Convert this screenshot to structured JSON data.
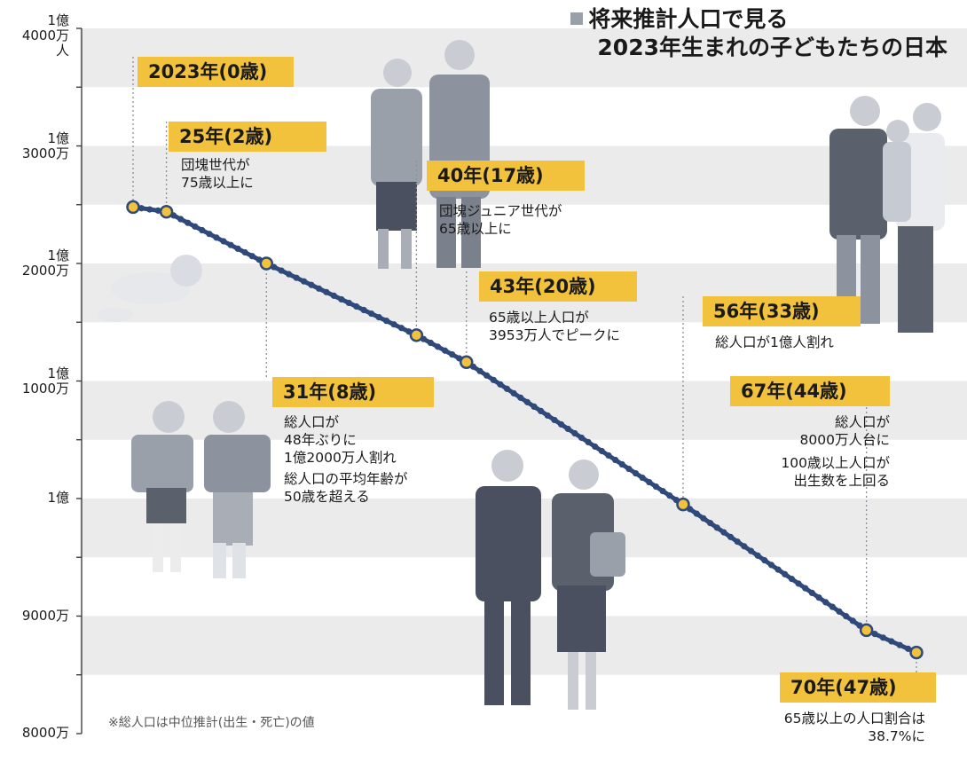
{
  "title_line1": "将来推計人口で見る",
  "title_line2": "2023年生まれの子どもたちの日本",
  "y_ticks": [
    {
      "text1": "1億",
      "text2": "4000万",
      "text3": "人"
    },
    {
      "text1": "1億",
      "text2": "3000万",
      "text3": ""
    },
    {
      "text1": "1億",
      "text2": "2000万",
      "text3": ""
    },
    {
      "text1": "1億",
      "text2": "1000万",
      "text3": ""
    },
    {
      "text1": "1億",
      "text2": "",
      "text3": ""
    },
    {
      "text1": "9000万",
      "text2": "",
      "text3": ""
    },
    {
      "text1": "8000万",
      "text2": "",
      "text3": ""
    }
  ],
  "footnote": "※総人口は中位推計(出生・死亡)の値",
  "colors": {
    "line": "#2f4a7a",
    "marker_fill": "#f2c23c",
    "tag": "#f2c23c",
    "band": "#ebebeb"
  },
  "events": [
    {
      "year_label": "2023年",
      "age_label": "(0歳)",
      "notes": []
    },
    {
      "year_label": "25年",
      "age_label": "(2歳)",
      "notes": [
        "団塊世代が",
        "75歳以上に"
      ]
    },
    {
      "year_label": "31年",
      "age_label": "(8歳)",
      "notes": [
        "総人口が",
        "48年ぶりに",
        "1億2000万人割れ",
        "総人口の平均年齢が",
        "50歳を超える"
      ]
    },
    {
      "year_label": "40年",
      "age_label": "(17歳)",
      "notes": [
        "団塊ジュニア世代が",
        "65歳以上に"
      ]
    },
    {
      "year_label": "43年",
      "age_label": "(20歳)",
      "notes": [
        "65歳以上人口が",
        "3953万人でピークに"
      ]
    },
    {
      "year_label": "56年",
      "age_label": "(33歳)",
      "notes": [
        "総人口が1億人割れ"
      ]
    },
    {
      "year_label": "67年",
      "age_label": "(44歳)",
      "notes": [
        "総人口が",
        "8000万人台に",
        "100歳以上人口が",
        "出生数を上回る"
      ]
    },
    {
      "year_label": "70年",
      "age_label": "(47歳)",
      "notes": [
        "65歳以上の人口割合は",
        "38.7%に"
      ]
    }
  ],
  "chart_data": {
    "type": "line",
    "title": "将来推計人口で見る 2023年生まれの子どもたちの日本",
    "xlabel": "",
    "ylabel": "",
    "x": [
      2023,
      2025,
      2031,
      2040,
      2043,
      2056,
      2067,
      2070
    ],
    "series": [
      {
        "values": [
          124800000,
          124400000,
          120000000,
          113900000,
          111600000,
          99500000,
          88800000,
          86900000
        ]
      }
    ],
    "ylim": [
      80000000,
      140000000
    ],
    "grid": "horizontal bands",
    "legend": "none"
  }
}
